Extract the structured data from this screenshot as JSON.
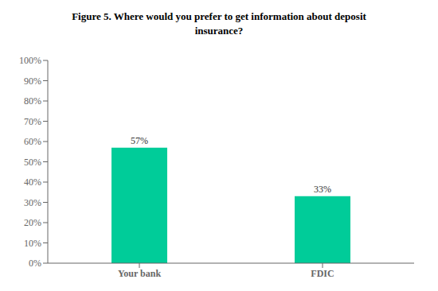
{
  "chart_data": {
    "type": "bar",
    "title": "Figure 5.  Where would you prefer to get information about deposit\ninsurance?",
    "categories": [
      "Your bank",
      "FDIC"
    ],
    "values": [
      57,
      33
    ],
    "value_labels": [
      "57%",
      "33%"
    ],
    "data_labels": true,
    "color": "#00CC99",
    "ylim": [
      0,
      100
    ],
    "yticks": [
      {
        "value": 0,
        "label": "0%"
      },
      {
        "value": 10,
        "label": "10%"
      },
      {
        "value": 20,
        "label": "20%"
      },
      {
        "value": 30,
        "label": "30%"
      },
      {
        "value": 40,
        "label": "40%"
      },
      {
        "value": 50,
        "label": "50%"
      },
      {
        "value": 60,
        "label": "60%"
      },
      {
        "value": 70,
        "label": "70%"
      },
      {
        "value": 80,
        "label": "80%"
      },
      {
        "value": 90,
        "label": "90%"
      },
      {
        "value": 100,
        "label": "100%"
      }
    ],
    "grid": false
  }
}
